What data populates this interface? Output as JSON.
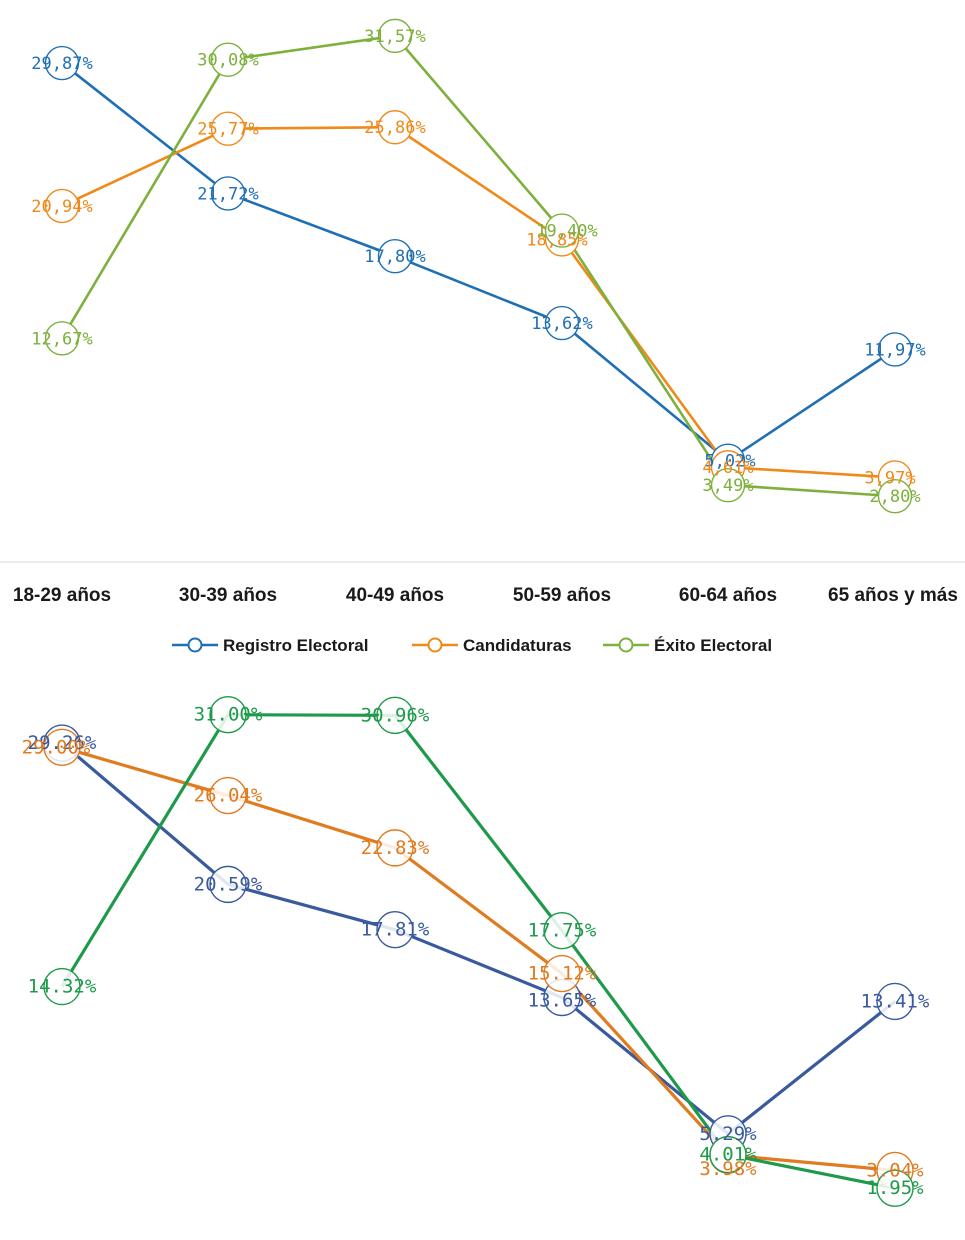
{
  "chart_data": [
    {
      "type": "line",
      "categories": [
        "18-29 años",
        "30-39 años",
        "40-49 años",
        "50-59 años",
        "60-64 años",
        "65 años y más"
      ],
      "series": [
        {
          "name": "Registro Electoral",
          "color": "#1f6fb5",
          "values": [
            29.87,
            21.72,
            17.8,
            13.62,
            5.02,
            11.97
          ],
          "labels": [
            "29,87%",
            "21,72%",
            "17,80%",
            "13,62%",
            "5,02%",
            "11,97%"
          ]
        },
        {
          "name": "Candidaturas",
          "color": "#ef8a1a",
          "values": [
            20.94,
            25.77,
            25.86,
            18.85,
            4.61,
            3.97
          ],
          "labels": [
            "20,94%",
            "25,77%",
            "25,86%",
            "18,85%",
            "4,61%",
            "3,97%"
          ]
        },
        {
          "name": "Éxito Electoral",
          "color": "#7db03c",
          "values": [
            12.67,
            30.08,
            31.57,
            19.4,
            3.49,
            2.8
          ],
          "labels": [
            "12,67%",
            "30,08%",
            "31,57%",
            "19,40%",
            "3,49%",
            "2,80%"
          ]
        }
      ],
      "ylim": [
        0,
        35
      ],
      "legend": "bottom",
      "grid": false
    },
    {
      "type": "line",
      "categories": [
        "18-29 años",
        "30-39 años",
        "40-49 años",
        "50-59 años",
        "60-64 años",
        "65 años y más"
      ],
      "series": [
        {
          "color": "#3a5a9e",
          "values": [
            29.26,
            20.59,
            17.81,
            13.65,
            5.29,
            13.41
          ],
          "labels": [
            "29.26%",
            "20.59%",
            "17.81%",
            "13.65%",
            "5.29%",
            "13.41%"
          ]
        },
        {
          "color": "#e07b20",
          "values": [
            29.0,
            26.04,
            22.83,
            15.12,
            3.98,
            3.04
          ],
          "labels": [
            "29.00%",
            "26.04%",
            "22.83%",
            "15.12%",
            "3.98%",
            "3.04%"
          ]
        },
        {
          "color": "#1e9a4a",
          "values": [
            14.32,
            31.0,
            30.96,
            17.75,
            4.01,
            1.95
          ],
          "labels": [
            "14.32%",
            "31.00%",
            "30.96%",
            "17.75%",
            "4.01%",
            "1.95%"
          ]
        }
      ],
      "ylim": [
        0,
        35
      ],
      "grid": false
    }
  ]
}
